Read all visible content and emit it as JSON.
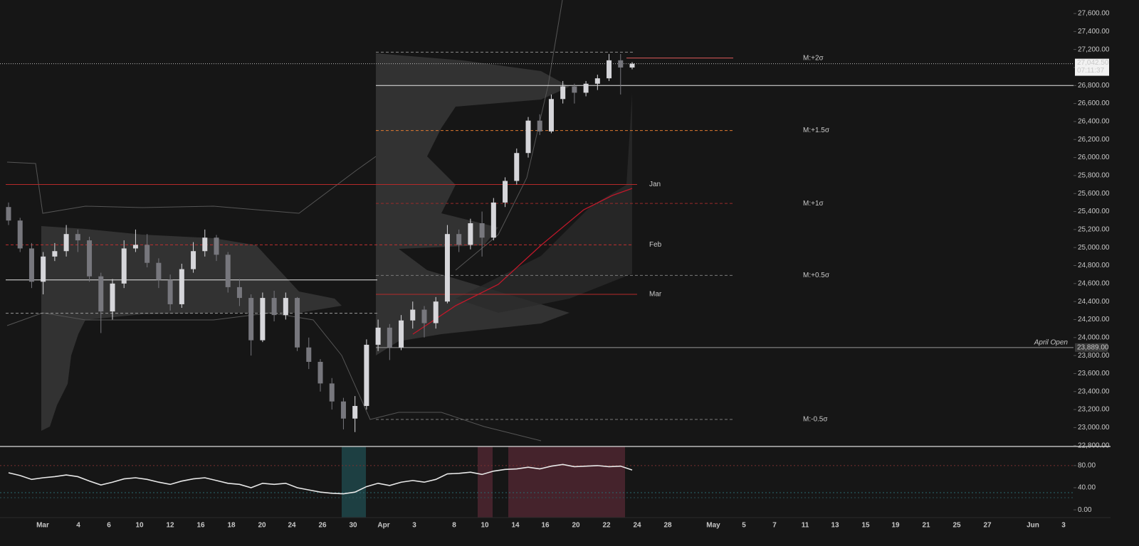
{
  "chart_data": [
    {
      "type": "candlestick",
      "open": [
        25450,
        25300,
        24990,
        24620,
        24900,
        24960,
        25150,
        25080,
        24680,
        24290,
        24600,
        24990,
        25030,
        24830,
        24640,
        24370,
        24760,
        24960,
        25110,
        24920,
        24560,
        24440,
        23970,
        24440,
        24250,
        24440,
        23890,
        23730,
        23490,
        23290,
        23100,
        23240,
        23920,
        24110,
        23890,
        24190,
        24310,
        24160,
        24400,
        25150,
        25030,
        25270,
        25110,
        25500,
        25740,
        26050,
        26410,
        26290,
        26650,
        26790,
        26720,
        26820,
        26880,
        27080,
        27000
      ],
      "high": [
        25500,
        25330,
        25050,
        24950,
        25050,
        25250,
        25200,
        25120,
        24720,
        24650,
        25080,
        25200,
        25150,
        24880,
        24700,
        24820,
        25060,
        25200,
        25140,
        24950,
        24650,
        24480,
        24500,
        24520,
        24500,
        24450,
        24000,
        23760,
        23550,
        23330,
        23350,
        23980,
        24200,
        24150,
        24250,
        24400,
        24350,
        24450,
        25250,
        25200,
        25320,
        25400,
        25550,
        25780,
        26100,
        26450,
        26480,
        26700,
        26850,
        26820,
        26850,
        26920,
        27150,
        27150,
        27060
      ],
      "low": [
        25250,
        24950,
        24550,
        24480,
        24850,
        24900,
        24950,
        24620,
        24050,
        24200,
        24550,
        24950,
        24780,
        24550,
        24300,
        24330,
        24720,
        24900,
        24850,
        24500,
        24350,
        23800,
        23950,
        24180,
        24200,
        23850,
        23650,
        23400,
        23200,
        22980,
        22950,
        23200,
        23850,
        23750,
        23860,
        24100,
        24000,
        24100,
        24380,
        24950,
        24980,
        24900,
        25080,
        25450,
        25700,
        26000,
        26250,
        26270,
        26600,
        26600,
        26680,
        26750,
        26850,
        26700,
        26980
      ],
      "close": [
        25300,
        24990,
        24620,
        24900,
        24960,
        25150,
        25080,
        24680,
        24290,
        24600,
        24990,
        25030,
        24830,
        24640,
        24370,
        24760,
        24960,
        25110,
        24920,
        24560,
        24440,
        23970,
        24440,
        24250,
        24440,
        23890,
        23730,
        23490,
        23290,
        23100,
        23240,
        23920,
        24110,
        23890,
        24190,
        24310,
        24160,
        24400,
        25150,
        25030,
        25270,
        25110,
        25500,
        25740,
        26050,
        26410,
        26290,
        26650,
        26790,
        26720,
        26820,
        26880,
        27080,
        27000,
        27042.5
      ],
      "up_color": "#d6d6da",
      "down_color": "#77777d",
      "ylim": [
        22790,
        27750
      ],
      "yticks": [
        {
          "value": 22800,
          "label": "22,800.00"
        },
        {
          "value": 23000,
          "label": "23,000.00"
        },
        {
          "value": 23200,
          "label": "23,200.00"
        },
        {
          "value": 23400,
          "label": "23,400.00"
        },
        {
          "value": 23600,
          "label": "23,600.00"
        },
        {
          "value": 23800,
          "label": "23,800.00"
        },
        {
          "value": 24000,
          "label": "24,000.00"
        },
        {
          "value": 24200,
          "label": "24,200.00"
        },
        {
          "value": 24400,
          "label": "24,400.00"
        },
        {
          "value": 24600,
          "label": "24,600.00"
        },
        {
          "value": 24800,
          "label": "24,800.00"
        },
        {
          "value": 25000,
          "label": "25,000.00"
        },
        {
          "value": 25200,
          "label": "25,200.00"
        },
        {
          "value": 25400,
          "label": "25,400.00"
        },
        {
          "value": 25600,
          "label": "25,600.00"
        },
        {
          "value": 25800,
          "label": "25,800.00"
        },
        {
          "value": 26000,
          "label": "26,000.00"
        },
        {
          "value": 26200,
          "label": "26,200.00"
        },
        {
          "value": 26400,
          "label": "26,400.00"
        },
        {
          "value": 26600,
          "label": "26,600.00"
        },
        {
          "value": 26800,
          "label": "26,800.00"
        },
        {
          "value": 27000,
          "label": "27,000.00"
        },
        {
          "value": 27200,
          "label": "27,200.00"
        },
        {
          "value": 27400,
          "label": "27,400.00"
        },
        {
          "value": 27600,
          "label": "27,600.00"
        }
      ],
      "last_price": {
        "value": 27042.5,
        "label": "27,042.50"
      },
      "countdown": "07:11:37",
      "levels": [
        {
          "value": 27170,
          "color": "#8a8a8a",
          "dashed": true
        },
        {
          "value": 27105,
          "name": "M:+2σ",
          "color": "#e05a5a",
          "dashed": false
        },
        {
          "value": 26800,
          "color": "#e6e6e6",
          "dashed": false
        },
        {
          "value": 26300,
          "name": "M:+1.5σ",
          "color": "#e07a30",
          "dashed": true
        },
        {
          "value": 25700,
          "name": "Jan",
          "color": "#b52a2a",
          "dashed": false
        },
        {
          "value": 25490,
          "name": "M:+1σ",
          "color": "#9a2a2a",
          "dashed": true
        },
        {
          "value": 25030,
          "name": "Feb",
          "color": "#c03030",
          "dashed": true
        },
        {
          "value": 24690,
          "name": "M:+0.5σ",
          "color": "#7a7a7a",
          "dashed": true
        },
        {
          "value": 24640,
          "color": "#e6e6e6",
          "dashed": false
        },
        {
          "value": 24480,
          "name": "Mar",
          "color": "#b52a2a",
          "dashed": false
        },
        {
          "value": 24270,
          "color": "#9a9a9a",
          "dashed": true
        },
        {
          "value": 23889,
          "name": "April Open",
          "label": "23,889.00",
          "color": "#9a9a9a",
          "dashed": false
        },
        {
          "value": 23090,
          "name": "M:-0.5σ",
          "color": "#7a7a7a",
          "dashed": true
        }
      ],
      "xtick_labels": [
        "Mar",
        "4",
        "6",
        "10",
        "12",
        "16",
        "18",
        "20",
        "24",
        "26",
        "30",
        "Apr",
        "3",
        "8",
        "10",
        "14",
        "16",
        "20",
        "22",
        "24",
        "28",
        "May",
        "5",
        "7",
        "11",
        "13",
        "15",
        "19",
        "21",
        "25",
        "27",
        "Jun",
        "3"
      ]
    },
    {
      "type": "line",
      "values": [
        67,
        62,
        55,
        58,
        60,
        63,
        60,
        52,
        45,
        50,
        56,
        58,
        55,
        50,
        46,
        52,
        56,
        58,
        53,
        48,
        46,
        40,
        48,
        46,
        48,
        40,
        36,
        32,
        30,
        29,
        32,
        42,
        48,
        44,
        50,
        53,
        50,
        55,
        65,
        66,
        68,
        64,
        70,
        73,
        74,
        77,
        74,
        79,
        82,
        78,
        79,
        80,
        78,
        79,
        72
      ],
      "color": "#e8e8e8",
      "ylim": [
        -14,
        112
      ],
      "yticks": [
        {
          "value": 0,
          "label": "0.00"
        },
        {
          "value": 40,
          "label": "40.00"
        },
        {
          "value": 80,
          "label": "80.00"
        }
      ],
      "levels": [
        {
          "value": 80,
          "color": "#7a3030"
        },
        {
          "value": 31,
          "color": "#2a6a70"
        },
        {
          "value": 22,
          "color": "#2a5055"
        }
      ]
    }
  ]
}
